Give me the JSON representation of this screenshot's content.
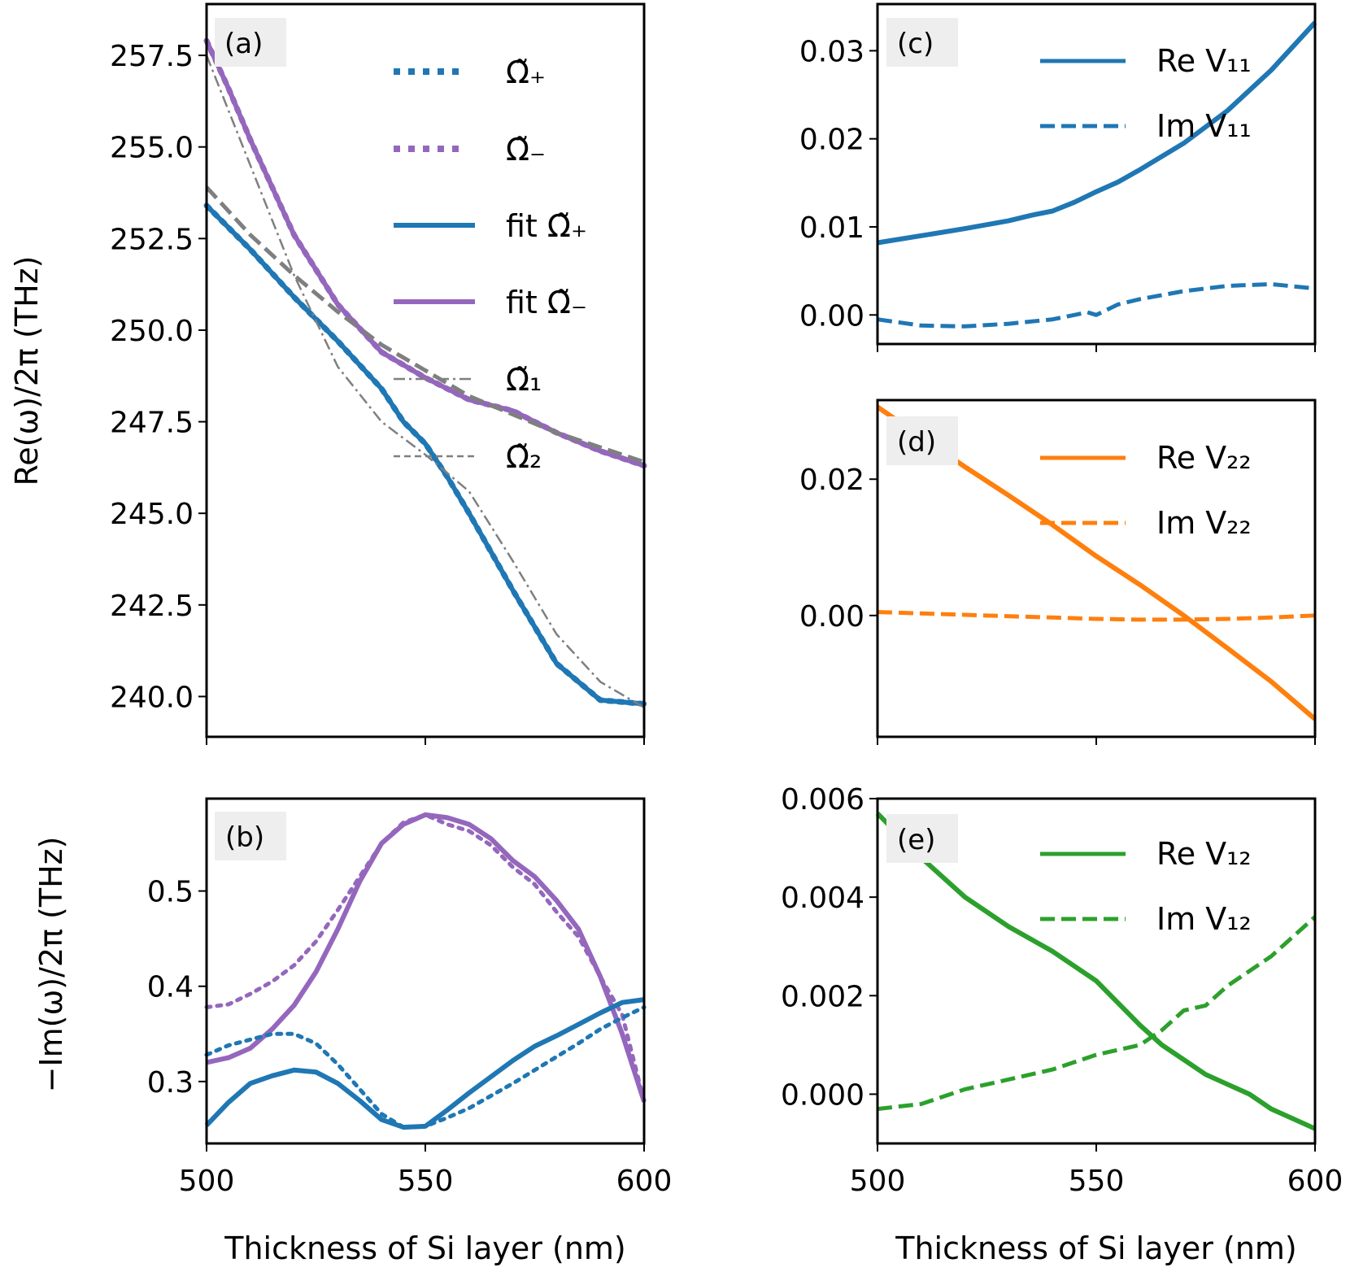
{
  "chart_data": [
    {
      "id": "a",
      "type": "line",
      "panel_label": "(a)",
      "ylabel": "Re(ω)/2π (THz)",
      "ylim": [
        238.9,
        258.9
      ],
      "xlim": [
        500,
        600
      ],
      "yticks": [
        "240.0",
        "242.5",
        "245.0",
        "247.5",
        "250.0",
        "252.5",
        "255.0",
        "257.5"
      ],
      "ytick_values": [
        240.0,
        242.5,
        245.0,
        247.5,
        250.0,
        252.5,
        255.0,
        257.5
      ],
      "legend": [
        "Ω̃₊",
        "Ω̃₋",
        "fit Ω̃₊",
        "fit Ω̃₋",
        "Ω̃₁",
        "Ω̃₂"
      ],
      "series": [
        {
          "name": "Ω̃₊",
          "color": "#1f77b4",
          "style": "dotted",
          "x": [
            500,
            510,
            520,
            530,
            540,
            545,
            550,
            555,
            560,
            570,
            580,
            590,
            600
          ],
          "y": [
            253.4,
            252.2,
            250.9,
            249.7,
            248.4,
            247.5,
            246.9,
            246.0,
            245.0,
            242.9,
            240.9,
            239.9,
            239.8
          ]
        },
        {
          "name": "Ω̃₋",
          "color": "#9467bd",
          "style": "dotted",
          "x": [
            500,
            505,
            510,
            520,
            530,
            540,
            550,
            560,
            570,
            580,
            590,
            600
          ],
          "y": [
            257.9,
            256.6,
            255.2,
            252.6,
            250.7,
            249.4,
            248.7,
            248.1,
            247.8,
            247.2,
            246.7,
            246.3
          ]
        },
        {
          "name": "fit Ω̃₊",
          "color": "#1f77b4",
          "style": "solid",
          "x": [
            500,
            510,
            520,
            530,
            540,
            545,
            550,
            555,
            560,
            570,
            580,
            590,
            600
          ],
          "y": [
            253.4,
            252.2,
            250.9,
            249.7,
            248.4,
            247.5,
            246.9,
            246.0,
            245.0,
            242.9,
            240.9,
            239.9,
            239.8
          ]
        },
        {
          "name": "fit Ω̃₋",
          "color": "#9467bd",
          "style": "solid",
          "x": [
            500,
            505,
            510,
            520,
            530,
            540,
            550,
            560,
            570,
            580,
            590,
            600
          ],
          "y": [
            257.9,
            256.6,
            255.2,
            252.6,
            250.7,
            249.4,
            248.7,
            248.1,
            247.8,
            247.2,
            246.7,
            246.3
          ]
        },
        {
          "name": "Ω̃₁",
          "color": "#7f7f7f",
          "style": "dashdot",
          "x": [
            500,
            510,
            520,
            530,
            540,
            550,
            560,
            570,
            580,
            590,
            600
          ],
          "y": [
            257.5,
            254.5,
            251.5,
            249.0,
            247.5,
            246.6,
            245.6,
            243.7,
            241.7,
            240.4,
            239.7
          ]
        },
        {
          "name": "Ω̃₂",
          "color": "#7f7f7f",
          "style": "dashed",
          "x": [
            500,
            510,
            520,
            530,
            540,
            550,
            560,
            570,
            580,
            590,
            600
          ],
          "y": [
            253.9,
            252.6,
            251.5,
            250.5,
            249.6,
            248.9,
            248.2,
            247.7,
            247.2,
            246.8,
            246.4
          ]
        }
      ]
    },
    {
      "id": "b",
      "type": "line",
      "panel_label": "(b)",
      "ylabel": "−Im(ω)/2π (THz)",
      "ylim": [
        0.235,
        0.597
      ],
      "xlim": [
        500,
        600
      ],
      "xlabel": "Thickness of Si layer (nm)",
      "xticks": [
        "500",
        "550",
        "600"
      ],
      "xtick_values": [
        500,
        550,
        600
      ],
      "yticks": [
        "0.3",
        "0.4",
        "0.5"
      ],
      "ytick_values": [
        0.3,
        0.4,
        0.5
      ],
      "series": [
        {
          "name": "Ω̃₋ data",
          "color": "#9467bd",
          "style": "dotted",
          "x": [
            500,
            505,
            510,
            515,
            520,
            525,
            530,
            535,
            540,
            545,
            550,
            555,
            560,
            565,
            570,
            575,
            580,
            585,
            590,
            595,
            600
          ],
          "y": [
            0.378,
            0.381,
            0.392,
            0.405,
            0.422,
            0.447,
            0.48,
            0.515,
            0.55,
            0.572,
            0.58,
            0.57,
            0.563,
            0.548,
            0.525,
            0.507,
            0.478,
            0.452,
            0.41,
            0.37,
            0.279
          ]
        },
        {
          "name": "Ω̃₋ fit",
          "color": "#9467bd",
          "style": "solid",
          "x": [
            500,
            505,
            510,
            515,
            520,
            525,
            530,
            535,
            540,
            545,
            550,
            555,
            560,
            565,
            570,
            575,
            580,
            585,
            590,
            595,
            600
          ],
          "y": [
            0.32,
            0.325,
            0.335,
            0.355,
            0.38,
            0.415,
            0.46,
            0.51,
            0.55,
            0.57,
            0.58,
            0.577,
            0.57,
            0.555,
            0.532,
            0.515,
            0.49,
            0.46,
            0.41,
            0.35,
            0.279
          ]
        },
        {
          "name": "Ω̃₊ data",
          "color": "#1f77b4",
          "style": "dotted",
          "x": [
            500,
            505,
            510,
            515,
            520,
            525,
            530,
            535,
            540,
            545,
            550,
            555,
            560,
            565,
            570,
            575,
            580,
            585,
            590,
            595,
            600
          ],
          "y": [
            0.328,
            0.338,
            0.344,
            0.35,
            0.35,
            0.34,
            0.318,
            0.292,
            0.266,
            0.252,
            0.253,
            0.262,
            0.272,
            0.285,
            0.298,
            0.312,
            0.326,
            0.34,
            0.355,
            0.367,
            0.378
          ]
        },
        {
          "name": "Ω̃₊ fit",
          "color": "#1f77b4",
          "style": "solid",
          "x": [
            500,
            505,
            510,
            515,
            520,
            525,
            530,
            535,
            540,
            545,
            550,
            555,
            560,
            565,
            570,
            575,
            580,
            585,
            590,
            595,
            600
          ],
          "y": [
            0.254,
            0.278,
            0.298,
            0.306,
            0.312,
            0.31,
            0.298,
            0.28,
            0.26,
            0.252,
            0.253,
            0.27,
            0.288,
            0.305,
            0.322,
            0.337,
            0.348,
            0.36,
            0.372,
            0.383,
            0.386
          ]
        }
      ]
    },
    {
      "id": "c",
      "type": "line",
      "panel_label": "(c)",
      "ylim": [
        -0.0033,
        0.0353
      ],
      "xlim": [
        500,
        600
      ],
      "yticks": [
        "0.00",
        "0.01",
        "0.02",
        "0.03"
      ],
      "ytick_values": [
        0.0,
        0.01,
        0.02,
        0.03
      ],
      "legend": [
        "Re V₁₁",
        "Im V₁₁"
      ],
      "series": [
        {
          "name": "Re V₁₁",
          "color": "#1f77b4",
          "style": "solid",
          "x": [
            500,
            510,
            520,
            530,
            535,
            540,
            545,
            550,
            555,
            560,
            570,
            580,
            590,
            600
          ],
          "y": [
            0.0082,
            0.009,
            0.0098,
            0.0107,
            0.0113,
            0.0118,
            0.0128,
            0.014,
            0.0151,
            0.0165,
            0.0195,
            0.0232,
            0.0278,
            0.0332
          ]
        },
        {
          "name": "Im V₁₁",
          "color": "#1f77b4",
          "style": "dashed",
          "x": [
            500,
            510,
            520,
            530,
            540,
            545,
            548,
            550,
            555,
            560,
            570,
            580,
            590,
            600
          ],
          "y": [
            -0.0005,
            -0.0012,
            -0.0013,
            -0.001,
            -0.0005,
            0.0,
            0.0003,
            0.0,
            0.0012,
            0.0018,
            0.0027,
            0.0033,
            0.0035,
            0.003
          ]
        }
      ]
    },
    {
      "id": "d",
      "type": "line",
      "panel_label": "(d)",
      "ylim": [
        -0.0178,
        0.0316
      ],
      "xlim": [
        500,
        600
      ],
      "yticks": [
        "0.00",
        "0.02"
      ],
      "ytick_values": [
        0.0,
        0.02
      ],
      "legend": [
        "Re V₂₂",
        "Im V₂₂"
      ],
      "series": [
        {
          "name": "Re V₂₂",
          "color": "#ff7f0e",
          "style": "solid",
          "x": [
            500,
            510,
            520,
            530,
            540,
            550,
            560,
            570,
            580,
            590,
            600
          ],
          "y": [
            0.0306,
            0.0262,
            0.0218,
            0.0176,
            0.0133,
            0.0087,
            0.0045,
            0.0,
            -0.0048,
            -0.0097,
            -0.0152
          ]
        },
        {
          "name": "Im V₂₂",
          "color": "#ff7f0e",
          "style": "dashed",
          "x": [
            500,
            510,
            520,
            530,
            540,
            550,
            560,
            570,
            580,
            590,
            600
          ],
          "y": [
            0.0005,
            0.0003,
            0.0001,
            -0.0001,
            -0.0003,
            -0.0005,
            -0.0006,
            -0.0006,
            -0.0005,
            -0.0003,
            0.0
          ]
        }
      ]
    },
    {
      "id": "e",
      "type": "line",
      "panel_label": "(e)",
      "ylim": [
        -0.001,
        0.006
      ],
      "xlim": [
        500,
        600
      ],
      "xlabel": "Thickness of Si layer (nm)",
      "xticks": [
        "500",
        "550",
        "600"
      ],
      "xtick_values": [
        500,
        550,
        600
      ],
      "yticks": [
        "0.000",
        "0.002",
        "0.004",
        "0.006"
      ],
      "ytick_values": [
        0.0,
        0.002,
        0.004,
        0.006
      ],
      "legend": [
        "Re V₁₂",
        "Im V₁₂"
      ],
      "series": [
        {
          "name": "Re V₁₂",
          "color": "#2ca02c",
          "style": "solid",
          "x": [
            500,
            510,
            520,
            530,
            540,
            550,
            560,
            565,
            570,
            575,
            580,
            585,
            590,
            595,
            600
          ],
          "y": [
            0.0057,
            0.0048,
            0.004,
            0.0034,
            0.0029,
            0.0023,
            0.0014,
            0.001,
            0.0007,
            0.0004,
            0.0002,
            0.0,
            -0.0003,
            -0.0005,
            -0.0007
          ]
        },
        {
          "name": "Im V₁₂",
          "color": "#2ca02c",
          "style": "dashed",
          "x": [
            500,
            510,
            520,
            530,
            540,
            550,
            560,
            565,
            570,
            575,
            580,
            590,
            600
          ],
          "y": [
            -0.0003,
            -0.0002,
            0.0001,
            0.0003,
            0.0005,
            0.0008,
            0.001,
            0.0013,
            0.0017,
            0.0018,
            0.0022,
            0.0028,
            0.0036
          ]
        }
      ]
    }
  ]
}
